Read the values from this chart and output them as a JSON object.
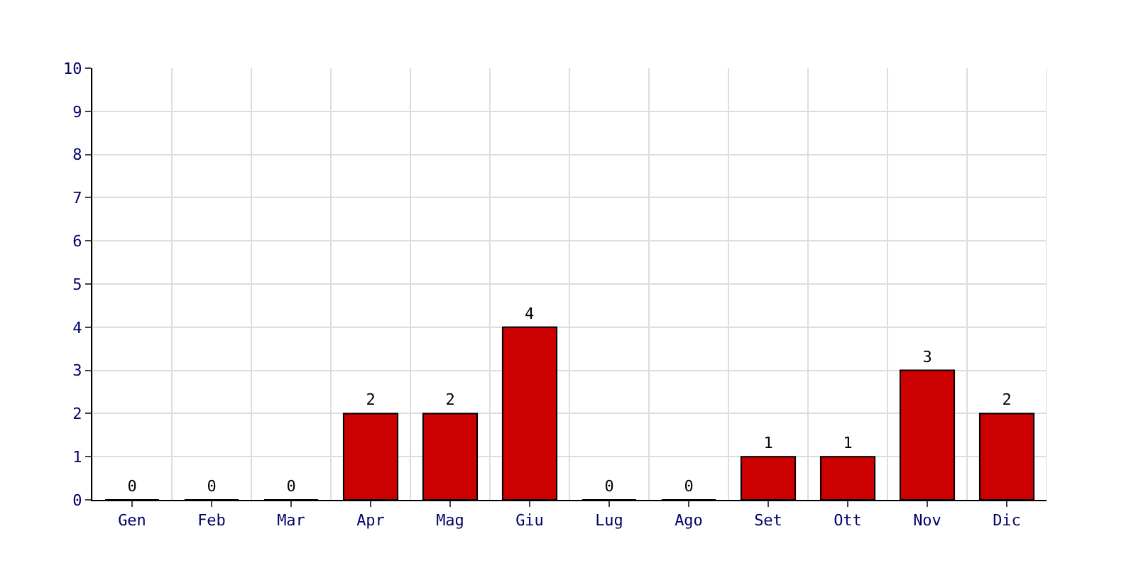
{
  "chart_data": {
    "type": "bar",
    "categories": [
      "Gen",
      "Feb",
      "Mar",
      "Apr",
      "Mag",
      "Giu",
      "Lug",
      "Ago",
      "Set",
      "Ott",
      "Nov",
      "Dic"
    ],
    "values": [
      0,
      0,
      0,
      2,
      2,
      4,
      0,
      0,
      1,
      1,
      3,
      2
    ],
    "color": "#cc0000",
    "ylim": [
      0,
      10
    ],
    "yticks": [
      0,
      1,
      2,
      3,
      4,
      5,
      6,
      7,
      8,
      9,
      10
    ],
    "grid": true,
    "data_labels": true
  }
}
